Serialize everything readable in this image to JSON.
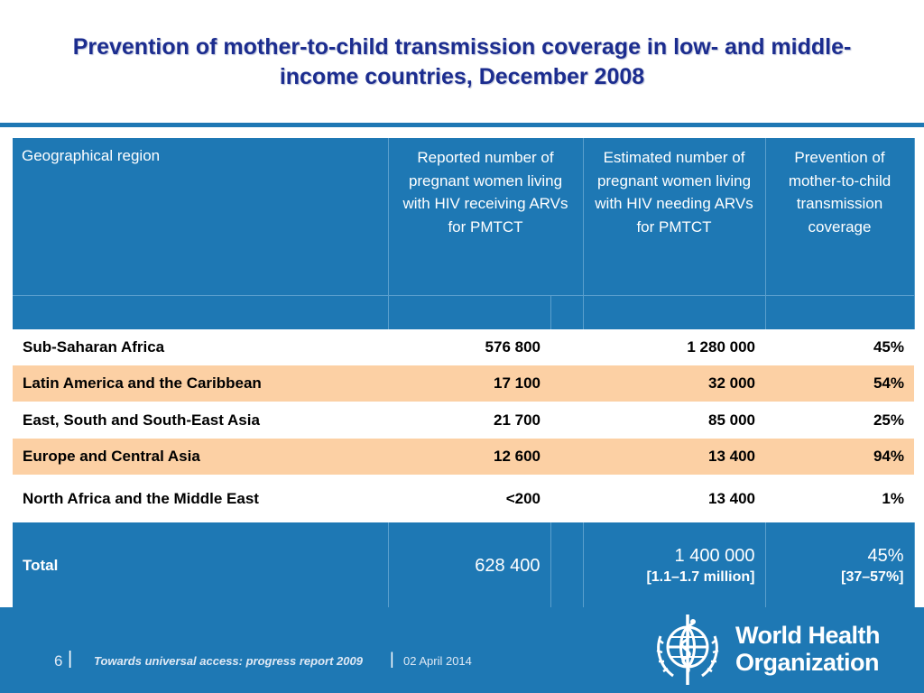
{
  "title": {
    "line1": "Prevention of mother-to-child transmission coverage in low- and middle-",
    "line2": "income countries, December 2008"
  },
  "table": {
    "headers": [
      "Geographical region",
      "Reported number of pregnant women living with HIV receiving ARVs for PMTCT",
      "Estimated number of pregnant women living with HIV needing ARVs for PMTCT",
      "Prevention of mother-to-child transmission coverage"
    ],
    "rows": [
      {
        "region": "Sub-Saharan Africa",
        "reported": "576 800",
        "estimated": "1 280 000",
        "coverage": "45%"
      },
      {
        "region": "Latin America and the Caribbean",
        "reported": "17 100",
        "estimated": "32 000",
        "coverage": "54%"
      },
      {
        "region": "East, South and South-East Asia",
        "reported": "21 700",
        "estimated": "85 000",
        "coverage": "25%"
      },
      {
        "region": "Europe and Central Asia",
        "reported": "12 600",
        "estimated": "13 400",
        "coverage": "94%"
      },
      {
        "region": "North Africa and the Middle East",
        "reported": "<200",
        "estimated": "13 400",
        "coverage": "1%"
      }
    ],
    "total": {
      "label": "Total",
      "reported": "628 400",
      "estimated": "1 400 000",
      "estimated_range": "[1.1–1.7 million]",
      "coverage": "45%",
      "coverage_range": "[37–57%]"
    }
  },
  "footer": {
    "page_number": "6",
    "separator": "|",
    "report_title": "Towards universal access: progress report 2009",
    "date": "02 April 2014",
    "org_line1": "World Health",
    "org_line2": "Organization"
  },
  "colors": {
    "title": "#1c2d8f",
    "header_blue": "#1e78b4",
    "row_highlight": "#fcd0a4"
  }
}
